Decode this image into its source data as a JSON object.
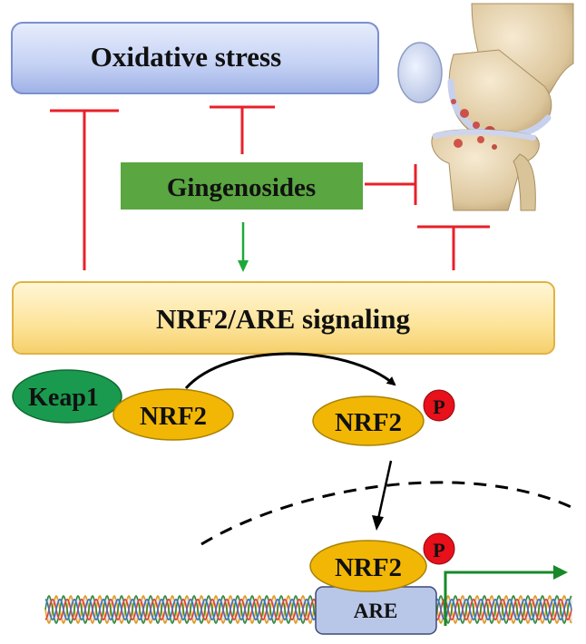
{
  "nodes": {
    "oxidative_stress": "Oxidative stress",
    "gingenosides": "Gingenosides",
    "nrf2_are_signaling": "NRF2/ARE signaling",
    "keap1": "Keap1",
    "nrf2_bound": "NRF2",
    "nrf2_phospho": "NRF2",
    "phospho_p1": "P",
    "nrf2_nuclear": "NRF2",
    "phospho_p2": "P",
    "are": "ARE"
  },
  "colors": {
    "inhibit": "#e8202a",
    "activate": "#1fa83a",
    "oxidative_box": "#c9d5f5",
    "gingenosides_box": "#5aa641",
    "signaling_box": "#fde9a6",
    "keap1": "#1a9a4e",
    "nrf2": "#f2b705",
    "phospho": "#e8101a",
    "are_box": "#b8c6e8",
    "transcription_arrow": "#178a28"
  },
  "icons": {
    "knee_joint": "knee-joint-illustration",
    "dna": "dna-double-helix"
  }
}
